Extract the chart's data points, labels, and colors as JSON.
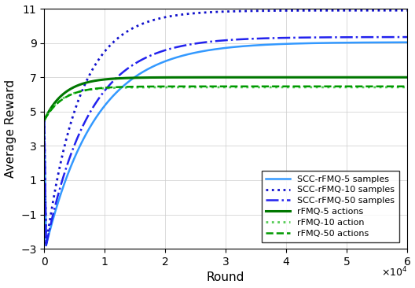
{
  "title": "",
  "xlabel": "Round",
  "ylabel": "Average Reward",
  "xlim": [
    0,
    60000
  ],
  "ylim": [
    -3,
    11
  ],
  "yticks": [
    -3,
    -1,
    1,
    3,
    5,
    7,
    9,
    11
  ],
  "xticks": [
    0,
    10000,
    20000,
    30000,
    40000,
    50000,
    60000
  ],
  "xtick_labels": [
    "0",
    "1",
    "2",
    "3",
    "4",
    "5",
    "6"
  ],
  "series": [
    {
      "label": "SCC-rFMQ-5 samples",
      "color": "#3399FF",
      "linestyle": "solid",
      "linewidth": 1.8,
      "y0": 4.5,
      "y_dip": -2.8,
      "y_end": 9.05,
      "rate": 0.00012,
      "dip_x": 300,
      "type": "scc"
    },
    {
      "label": "SCC-rFMQ-10 samples",
      "color": "#1111CC",
      "linestyle": "dotted",
      "linewidth": 2.0,
      "y0": 4.5,
      "y_dip": -2.8,
      "y_end": 10.9,
      "rate": 0.00018,
      "dip_x": 300,
      "type": "scc"
    },
    {
      "label": "SCC-rFMQ-50 samples",
      "color": "#2222EE",
      "linestyle": "dashdot",
      "linewidth": 1.8,
      "y0": 4.5,
      "y_dip": -2.8,
      "y_end": 9.35,
      "rate": 0.00014,
      "dip_x": 300,
      "type": "scc"
    },
    {
      "label": "rFMQ-5 actions",
      "color": "#007700",
      "linestyle": "solid",
      "linewidth": 2.2,
      "y0": 4.5,
      "y_end": 7.0,
      "rate": 0.0003,
      "type": "rfmq"
    },
    {
      "label": "rFMQ-10 action",
      "color": "#55CC55",
      "linestyle": "dotted",
      "linewidth": 2.0,
      "y0": 4.5,
      "y_end": 6.42,
      "rate": 0.00035,
      "type": "rfmq"
    },
    {
      "label": "rFMQ-50 actions",
      "color": "#009900",
      "linestyle": "dashed",
      "linewidth": 1.8,
      "y0": 4.5,
      "y_end": 6.47,
      "rate": 0.00032,
      "type": "rfmq"
    }
  ],
  "legend_loc": "lower right",
  "grid_color": "#CCCCCC",
  "bg_color": "#FFFFFF",
  "tick_fontsize": 10,
  "label_fontsize": 11
}
